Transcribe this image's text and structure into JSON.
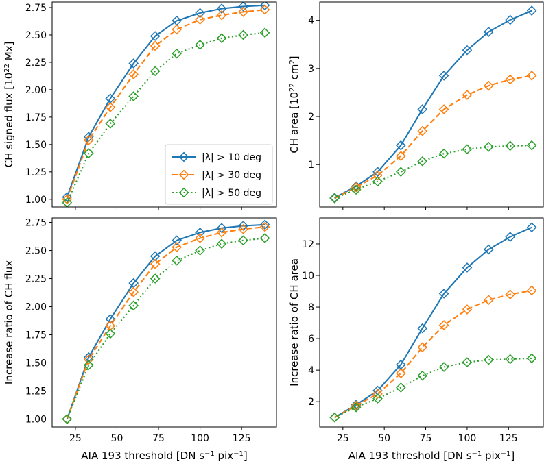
{
  "series_styles": [
    {
      "name": "|λ| > 10 deg",
      "color": "#1f77b4",
      "dash": "solid"
    },
    {
      "name": "|λ| > 30 deg",
      "color": "#ff7f0e",
      "dash": "dashed"
    },
    {
      "name": "|λ| > 50 deg",
      "color": "#2ca02c",
      "dash": "dotted"
    }
  ],
  "legend": {
    "placement": "lower-right",
    "panel": 0
  },
  "chart_data": [
    {
      "type": "line",
      "title": "",
      "xlabel": "",
      "ylabel": "CH signed flux [10^22 Mx]",
      "ylabel_parts": {
        "pre": "CH signed flux [10",
        "sup": "22",
        "post": " Mx]"
      },
      "x": [
        20,
        33,
        46,
        60,
        73,
        86,
        100,
        113,
        126,
        139
      ],
      "xlim": [
        11,
        146
      ],
      "xticks": [
        25,
        50,
        75,
        100,
        125
      ],
      "xtick_labels_shown": false,
      "ylim": [
        0.93,
        2.8
      ],
      "yticks": [
        1.0,
        1.25,
        1.5,
        1.75,
        2.0,
        2.25,
        2.5,
        2.75
      ],
      "ytick_labels": [
        "1.00",
        "1.25",
        "1.50",
        "1.75",
        "2.00",
        "2.25",
        "2.50",
        "2.75"
      ],
      "series": [
        {
          "name": "|λ| > 10 deg",
          "values": [
            1.02,
            1.57,
            1.92,
            2.24,
            2.49,
            2.63,
            2.7,
            2.74,
            2.76,
            2.77
          ]
        },
        {
          "name": "|λ| > 30 deg",
          "values": [
            1.0,
            1.54,
            1.84,
            2.14,
            2.4,
            2.55,
            2.64,
            2.68,
            2.71,
            2.73
          ]
        },
        {
          "name": "|λ| > 50 deg",
          "values": [
            0.97,
            1.42,
            1.69,
            1.94,
            2.17,
            2.33,
            2.41,
            2.47,
            2.5,
            2.52
          ]
        }
      ]
    },
    {
      "type": "line",
      "title": "",
      "xlabel": "",
      "ylabel": "CH area [10^22 cm^2]",
      "ylabel_parts": {
        "pre": "CH area [10",
        "sup": "22",
        "post": " cm",
        "sup2": "2",
        "post2": "]"
      },
      "x": [
        20,
        33,
        46,
        60,
        73,
        86,
        100,
        113,
        126,
        139
      ],
      "xlim": [
        11,
        146
      ],
      "xticks": [
        25,
        50,
        75,
        100,
        125
      ],
      "xtick_labels_shown": false,
      "ylim": [
        0.12,
        4.38
      ],
      "yticks": [
        1,
        2,
        3,
        4
      ],
      "ytick_labels": [
        "1",
        "2",
        "3",
        "4"
      ],
      "series": [
        {
          "name": "|λ| > 10 deg",
          "values": [
            0.31,
            0.55,
            0.85,
            1.4,
            2.15,
            2.85,
            3.38,
            3.76,
            4.01,
            4.2
          ]
        },
        {
          "name": "|λ| > 30 deg",
          "values": [
            0.3,
            0.53,
            0.78,
            1.18,
            1.7,
            2.15,
            2.45,
            2.64,
            2.77,
            2.85
          ]
        },
        {
          "name": "|λ| > 50 deg",
          "values": [
            0.3,
            0.48,
            0.65,
            0.85,
            1.07,
            1.23,
            1.32,
            1.37,
            1.39,
            1.4
          ]
        }
      ]
    },
    {
      "type": "line",
      "title": "",
      "xlabel": "AIA 193 threshold [DN s^-1 pix^-1]",
      "xlabel_parts": {
        "pre": "AIA 193 threshold [DN s",
        "sup": "−1",
        "mid": " pix",
        "sup2": "−1",
        "post": "]"
      },
      "ylabel": "Increase ratio of CH flux",
      "x": [
        20,
        33,
        46,
        60,
        73,
        86,
        100,
        113,
        126,
        139
      ],
      "xlim": [
        11,
        146
      ],
      "xticks": [
        25,
        50,
        75,
        100,
        125
      ],
      "xtick_labels_shown": true,
      "ylim": [
        0.93,
        2.79
      ],
      "yticks": [
        1.0,
        1.25,
        1.5,
        1.75,
        2.0,
        2.25,
        2.5,
        2.75
      ],
      "ytick_labels": [
        "1.00",
        "1.25",
        "1.50",
        "1.75",
        "2.00",
        "2.25",
        "2.50",
        "2.75"
      ],
      "series": [
        {
          "name": "|λ| > 10 deg",
          "values": [
            1.0,
            1.55,
            1.89,
            2.21,
            2.45,
            2.59,
            2.66,
            2.7,
            2.72,
            2.73
          ]
        },
        {
          "name": "|λ| > 30 deg",
          "values": [
            1.0,
            1.53,
            1.83,
            2.13,
            2.38,
            2.53,
            2.61,
            2.66,
            2.69,
            2.71
          ]
        },
        {
          "name": "|λ| > 50 deg",
          "values": [
            1.0,
            1.48,
            1.76,
            2.01,
            2.25,
            2.41,
            2.5,
            2.56,
            2.59,
            2.61
          ]
        }
      ]
    },
    {
      "type": "line",
      "title": "",
      "xlabel": "AIA 193 threshold [DN s^-1 pix^-1]",
      "xlabel_parts": {
        "pre": "AIA 193 threshold [DN s",
        "sup": "−1",
        "mid": " pix",
        "sup2": "−1",
        "post": "]"
      },
      "ylabel": "Increase ratio of CH area",
      "x": [
        20,
        33,
        46,
        60,
        73,
        86,
        100,
        113,
        126,
        139
      ],
      "xlim": [
        11,
        146
      ],
      "xticks": [
        25,
        50,
        75,
        100,
        125
      ],
      "xtick_labels_shown": true,
      "ylim": [
        0.4,
        13.65
      ],
      "yticks": [
        2,
        4,
        6,
        8,
        10,
        12
      ],
      "ytick_labels": [
        "2",
        "4",
        "6",
        "8",
        "10",
        "12"
      ],
      "series": [
        {
          "name": "|λ| > 10 deg",
          "values": [
            1.0,
            1.8,
            2.7,
            4.35,
            6.65,
            8.85,
            10.5,
            11.65,
            12.45,
            13.05
          ]
        },
        {
          "name": "|λ| > 30 deg",
          "values": [
            1.0,
            1.75,
            2.5,
            3.8,
            5.45,
            6.85,
            7.85,
            8.45,
            8.8,
            9.05
          ]
        },
        {
          "name": "|λ| > 50 deg",
          "values": [
            1.0,
            1.65,
            2.2,
            2.9,
            3.65,
            4.2,
            4.5,
            4.65,
            4.7,
            4.75
          ]
        }
      ]
    }
  ]
}
